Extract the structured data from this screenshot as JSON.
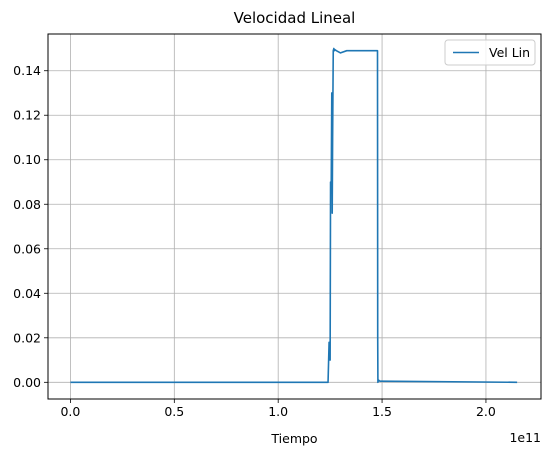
{
  "chart_data": {
    "type": "line",
    "title": "Velocidad Lineal",
    "xlabel": "Tiempo",
    "ylabel": "",
    "x_offset_text": "1e11",
    "xlim": [
      -0.108,
      2.265
    ],
    "ylim": [
      -0.0075,
      0.1565
    ],
    "x_ticks": [
      0.0,
      0.5,
      1.0,
      1.5,
      2.0
    ],
    "x_tick_labels": [
      "0.0",
      "0.5",
      "1.0",
      "1.5",
      "2.0"
    ],
    "y_ticks": [
      0.0,
      0.02,
      0.04,
      0.06,
      0.08,
      0.1,
      0.12,
      0.14
    ],
    "y_tick_labels": [
      "0.00",
      "0.02",
      "0.04",
      "0.06",
      "0.08",
      "0.10",
      "0.12",
      "0.14"
    ],
    "grid": true,
    "legend_position": "top-right",
    "series": [
      {
        "name": "Vel Lin",
        "color": "#1f77b4",
        "x": [
          0.0,
          1.24,
          1.245,
          1.25,
          1.252,
          1.255,
          1.258,
          1.26,
          1.262,
          1.265,
          1.268,
          1.27,
          1.272,
          1.28,
          1.3,
          1.33,
          1.36,
          1.4,
          1.44,
          1.47,
          1.478,
          1.479,
          1.48,
          1.483,
          1.49,
          1.5,
          2.15
        ],
        "y": [
          0.0,
          0.0,
          0.018,
          0.01,
          0.09,
          0.085,
          0.13,
          0.076,
          0.11,
          0.149,
          0.15,
          0.149,
          0.1495,
          0.149,
          0.148,
          0.149,
          0.149,
          0.149,
          0.149,
          0.149,
          0.149,
          0.02,
          0.0,
          0.001,
          0.0005,
          0.0005,
          0.0
        ]
      }
    ]
  }
}
